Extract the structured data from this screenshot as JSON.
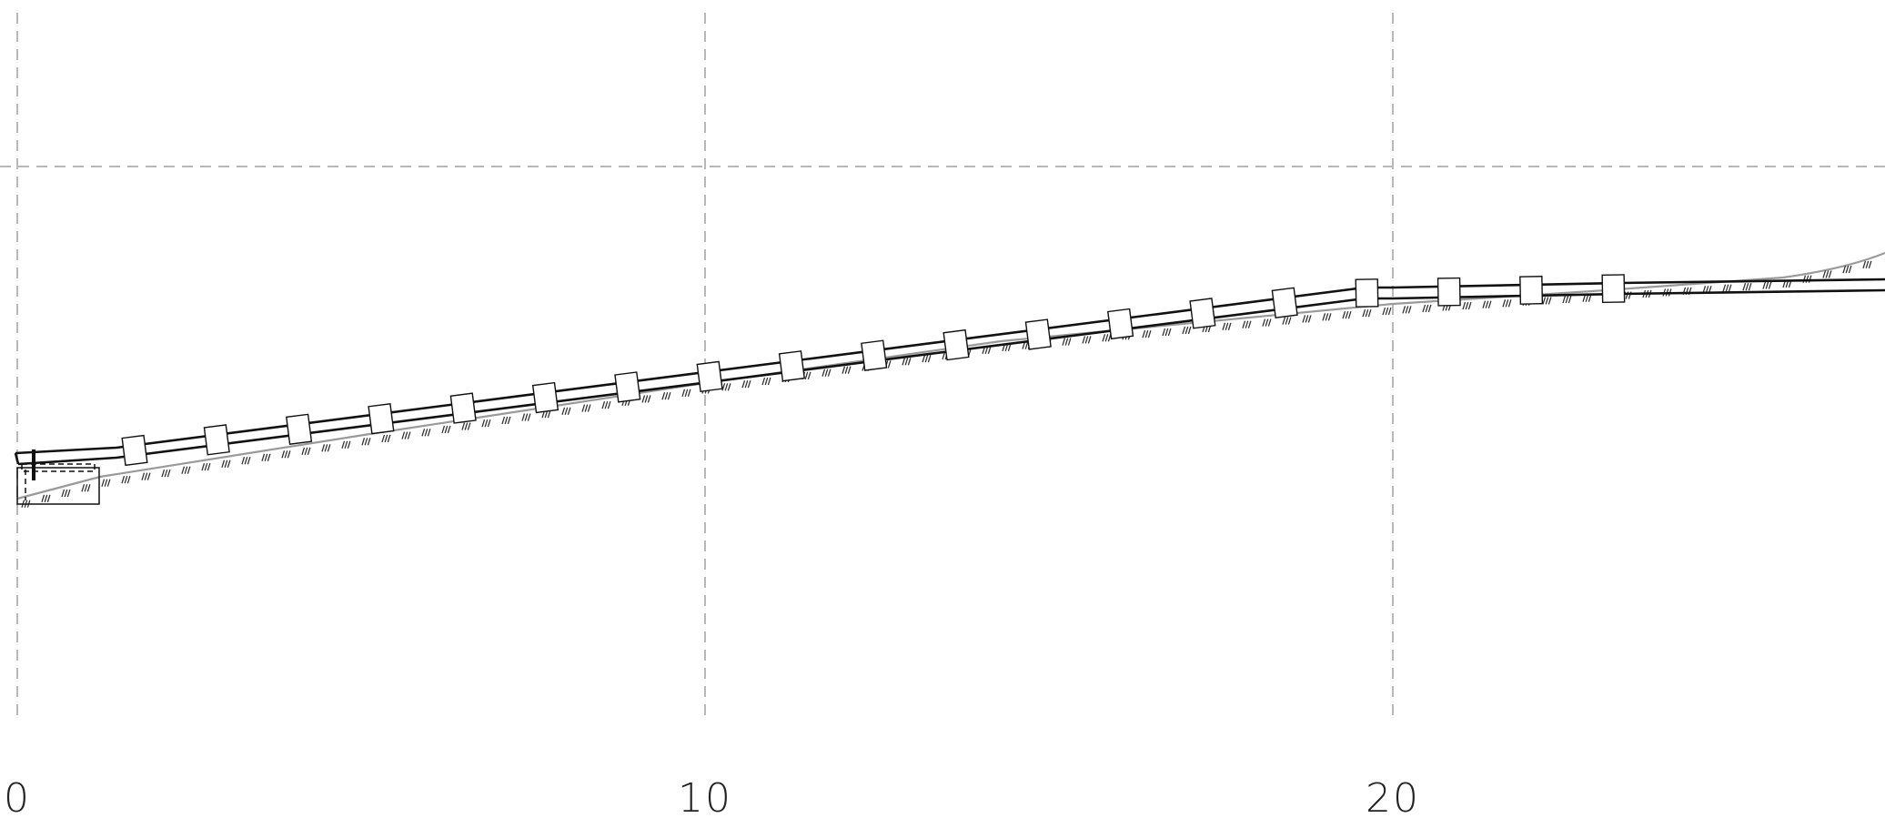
{
  "drawing": {
    "type": "pipe-profile-section",
    "colors": {
      "background": "#ffffff",
      "grid": "#b8b8b8",
      "pipe": "#111111",
      "ground": "#9a9a9a",
      "hatch": "#333333",
      "support_fill": "#ffffff"
    },
    "x_axis": {
      "ticks": [
        {
          "value": 0,
          "label": "0"
        },
        {
          "value": 10,
          "label": "10"
        },
        {
          "value": 20,
          "label": "20"
        }
      ]
    },
    "pipe_supports_count": 19
  }
}
